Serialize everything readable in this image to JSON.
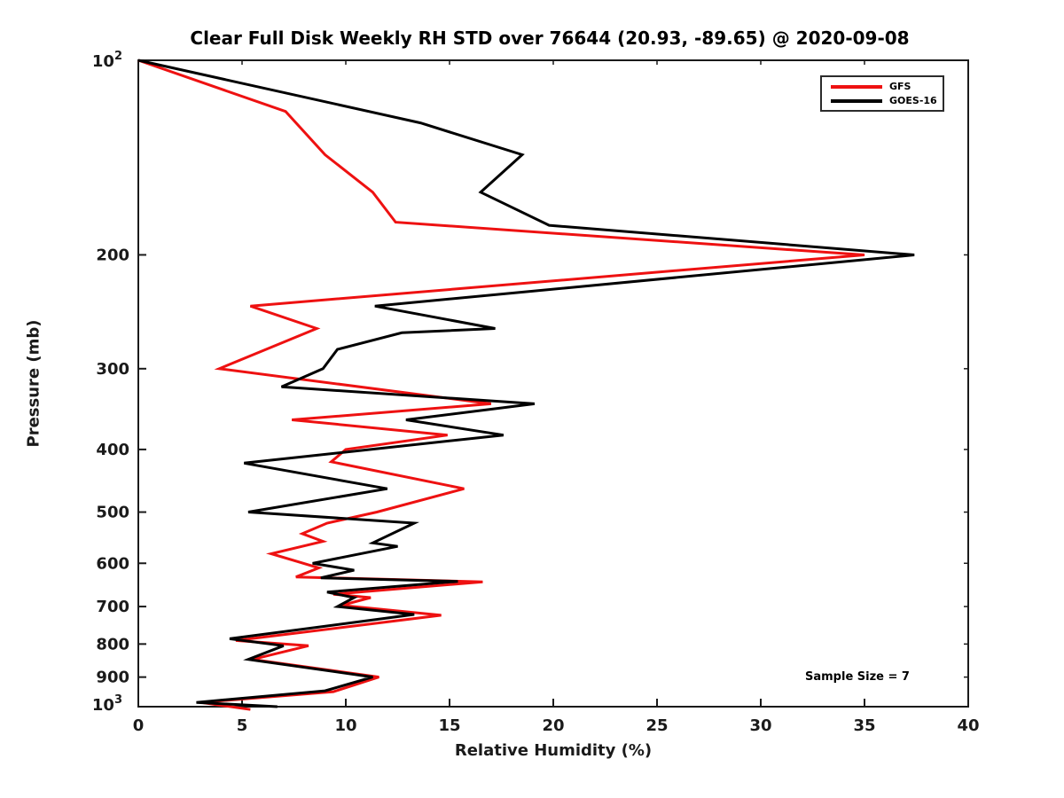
{
  "chart_data": {
    "type": "line",
    "title": "Clear Full Disk Weekly RH STD over 76644 (20.93, -89.65) @ 2020-09-08",
    "xlabel": "Relative Humidity (%)",
    "ylabel": "Pressure (mb)",
    "xlim": [
      0,
      40
    ],
    "xticks": [
      0,
      5,
      10,
      15,
      20,
      25,
      30,
      35,
      40
    ],
    "yscale": "log",
    "ylim": [
      100,
      1000
    ],
    "yticks": [
      {
        "value": 100,
        "label": "10^2"
      },
      {
        "value": 200,
        "label": "200"
      },
      {
        "value": 300,
        "label": "300"
      },
      {
        "value": 400,
        "label": "400"
      },
      {
        "value": 500,
        "label": "500"
      },
      {
        "value": 600,
        "label": "600"
      },
      {
        "value": 700,
        "label": "700"
      },
      {
        "value": 800,
        "label": "800"
      },
      {
        "value": 900,
        "label": "900"
      },
      {
        "value": 1000,
        "label": "10^3"
      }
    ],
    "grid": false,
    "legend_position": "upper right",
    "legend": {
      "entries": [
        {
          "name": "GFS",
          "color": "#ee1111"
        },
        {
          "name": "GOES-16",
          "color": "#000000"
        }
      ]
    },
    "annotation": "Sample Size = 7",
    "axis_color": "#1a1a1a",
    "series": [
      {
        "name": "GFS",
        "color": "#ee1111",
        "points": [
          [
            0,
            100
          ],
          [
            7.1,
            120
          ],
          [
            9.0,
            140
          ],
          [
            11.3,
            160
          ],
          [
            12.4,
            178
          ],
          [
            35.0,
            200
          ],
          [
            5.4,
            240
          ],
          [
            8.6,
            260
          ],
          [
            3.9,
            300
          ],
          [
            17.0,
            340
          ],
          [
            7.4,
            360
          ],
          [
            14.9,
            380
          ],
          [
            10.0,
            400
          ],
          [
            9.3,
            418
          ],
          [
            15.7,
            460
          ],
          [
            11.5,
            500
          ],
          [
            9.1,
            520
          ],
          [
            7.9,
            540
          ],
          [
            8.9,
            555
          ],
          [
            6.4,
            580
          ],
          [
            8.7,
            610
          ],
          [
            7.6,
            630
          ],
          [
            16.6,
            641
          ],
          [
            9.4,
            670
          ],
          [
            11.2,
            678
          ],
          [
            9.8,
            697
          ],
          [
            14.6,
            722
          ],
          [
            4.7,
            790
          ],
          [
            8.2,
            805
          ],
          [
            5.5,
            845
          ],
          [
            11.6,
            900
          ],
          [
            9.4,
            948
          ],
          [
            3.0,
            985
          ],
          [
            5.4,
            1010
          ]
        ]
      },
      {
        "name": "GOES-16",
        "color": "#000000",
        "points": [
          [
            0,
            100
          ],
          [
            13.6,
            125
          ],
          [
            18.5,
            140
          ],
          [
            16.5,
            160
          ],
          [
            19.8,
            180
          ],
          [
            37.4,
            200
          ],
          [
            11.4,
            240
          ],
          [
            17.2,
            260
          ],
          [
            12.7,
            264
          ],
          [
            9.6,
            280
          ],
          [
            8.9,
            300
          ],
          [
            6.9,
            320
          ],
          [
            19.1,
            340
          ],
          [
            12.9,
            360
          ],
          [
            17.6,
            380
          ],
          [
            5.1,
            420
          ],
          [
            12.0,
            460
          ],
          [
            5.3,
            500
          ],
          [
            13.3,
            520
          ],
          [
            11.3,
            558
          ],
          [
            12.5,
            565
          ],
          [
            8.4,
            600
          ],
          [
            10.4,
            615
          ],
          [
            8.8,
            632
          ],
          [
            15.4,
            640
          ],
          [
            9.1,
            665
          ],
          [
            10.4,
            678
          ],
          [
            9.6,
            700
          ],
          [
            13.3,
            720
          ],
          [
            4.4,
            785
          ],
          [
            7.0,
            805
          ],
          [
            5.3,
            845
          ],
          [
            11.3,
            900
          ],
          [
            9.0,
            945
          ],
          [
            2.8,
            985
          ],
          [
            6.7,
            1000
          ]
        ]
      }
    ]
  }
}
